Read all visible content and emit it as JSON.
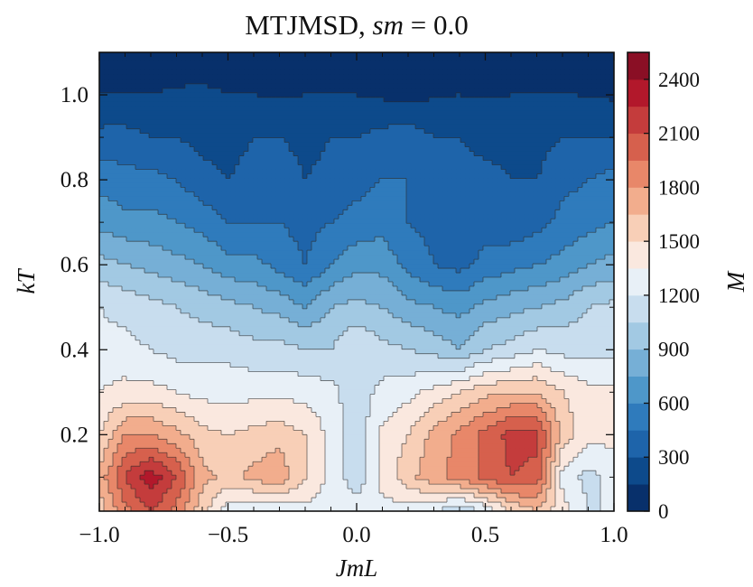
{
  "chart_data": {
    "type": "heatmap",
    "subtype": "filled-contour",
    "title_parts": [
      "MTJMSD, ",
      "sm",
      " = 0.0"
    ],
    "xlabel": "JmL",
    "ylabel": "kT",
    "colorbar_label": "M",
    "xlim": [
      -1.0,
      1.0
    ],
    "ylim": [
      0.02,
      1.1
    ],
    "x_ticks": [
      -1.0,
      -0.5,
      0.0,
      0.5,
      1.0
    ],
    "x_tick_labels": [
      "−1.0",
      "−0.5",
      "0.0",
      "0.5",
      "1.0"
    ],
    "y_ticks": [
      0.2,
      0.4,
      0.6,
      0.8,
      1.0
    ],
    "y_tick_labels": [
      "0.2",
      "0.4",
      "0.6",
      "0.8",
      "1.0"
    ],
    "colorbar_range": [
      0,
      2550
    ],
    "colorbar_ticks": [
      0,
      300,
      600,
      900,
      1200,
      1500,
      1800,
      2100,
      2400
    ],
    "colorbar_tick_labels": [
      "0",
      "300",
      "600",
      "900",
      "1200",
      "1500",
      "1800",
      "2100",
      "2400"
    ],
    "levels": [
      0,
      150,
      300,
      450,
      600,
      750,
      900,
      1050,
      1200,
      1350,
      1500,
      1650,
      1800,
      1950,
      2100,
      2250,
      2400,
      2550
    ],
    "level_colors": [
      "#08306b",
      "#0d4a8b",
      "#1e64aa",
      "#2f7bbc",
      "#4e97c9",
      "#76afd6",
      "#a2c9e3",
      "#c8ddee",
      "#e8f0f7",
      "#fae8df",
      "#f8cfb7",
      "#f2ad8d",
      "#e88769",
      "#d6604d",
      "#c43c3c",
      "#b2182b",
      "#8a0f25"
    ],
    "x": [
      -1.0,
      -0.9,
      -0.8,
      -0.7,
      -0.6,
      -0.5,
      -0.4,
      -0.3,
      -0.2,
      -0.1,
      0.0,
      0.1,
      0.2,
      0.3,
      0.4,
      0.5,
      0.6,
      0.7,
      0.8,
      0.9,
      1.0
    ],
    "y": [
      0.02,
      0.1,
      0.2,
      0.3,
      0.4,
      0.5,
      0.6,
      0.7,
      0.8,
      0.9,
      1.0,
      1.1
    ],
    "z": [
      [
        1550,
        1900,
        2100,
        1900,
        1550,
        1250,
        1200,
        1250,
        1300,
        1300,
        1300,
        1300,
        1280,
        1200,
        1050,
        1200,
        1500,
        1650,
        1400,
        1200,
        1200
      ],
      [
        1700,
        2100,
        2350,
        2100,
        1700,
        1600,
        1700,
        1750,
        1500,
        1300,
        1100,
        1400,
        1600,
        1750,
        1850,
        2000,
        2100,
        2050,
        1300,
        1150,
        1250
      ],
      [
        1500,
        1800,
        1800,
        1700,
        1550,
        1500,
        1550,
        1600,
        1500,
        1300,
        1100,
        1380,
        1500,
        1700,
        1850,
        2000,
        2150,
        2150,
        1600,
        1400,
        1400
      ],
      [
        1350,
        1400,
        1400,
        1350,
        1300,
        1300,
        1300,
        1300,
        1300,
        1250,
        1100,
        1250,
        1300,
        1400,
        1500,
        1600,
        1650,
        1650,
        1500,
        1400,
        1400
      ],
      [
        1250,
        1250,
        1200,
        1150,
        1150,
        1150,
        1100,
        1100,
        1050,
        1050,
        1200,
        1100,
        1050,
        1000,
        900,
        1050,
        1100,
        1200,
        1150,
        1150,
        1150
      ],
      [
        1200,
        1150,
        1100,
        1050,
        1000,
        950,
        900,
        850,
        750,
        900,
        950,
        900,
        800,
        750,
        700,
        800,
        850,
        900,
        950,
        1050,
        1100
      ],
      [
        950,
        900,
        850,
        800,
        750,
        650,
        650,
        550,
        450,
        600,
        700,
        700,
        550,
        450,
        400,
        500,
        550,
        600,
        650,
        750,
        800
      ],
      [
        700,
        650,
        650,
        600,
        550,
        450,
        450,
        450,
        400,
        450,
        500,
        550,
        450,
        400,
        350,
        400,
        350,
        400,
        500,
        550,
        600
      ],
      [
        550,
        500,
        500,
        450,
        350,
        300,
        350,
        400,
        300,
        350,
        400,
        450,
        450,
        400,
        350,
        350,
        300,
        300,
        400,
        450,
        500
      ],
      [
        350,
        350,
        300,
        300,
        250,
        250,
        300,
        300,
        250,
        300,
        300,
        350,
        400,
        300,
        300,
        250,
        250,
        250,
        300,
        300,
        300
      ],
      [
        150,
        160,
        150,
        170,
        180,
        150,
        150,
        140,
        150,
        160,
        150,
        130,
        80,
        140,
        150,
        140,
        150,
        150,
        160,
        140,
        130
      ],
      [
        60,
        60,
        60,
        60,
        60,
        60,
        60,
        60,
        60,
        60,
        60,
        60,
        60,
        60,
        60,
        60,
        60,
        60,
        60,
        60,
        60
      ]
    ]
  }
}
